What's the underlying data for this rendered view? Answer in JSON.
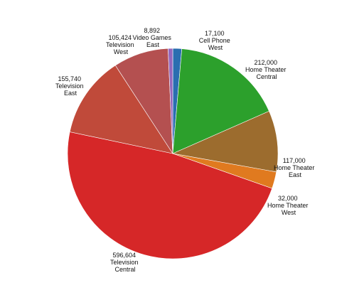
{
  "chart_data": {
    "type": "pie",
    "start": "12 o'clock",
    "direction": "clockwise",
    "slices": [
      {
        "region": "West",
        "product": "Cell Phone",
        "value": 17100,
        "color": "#2a6eb0"
      },
      {
        "region": "Central",
        "product": "Home Theater",
        "value": 212000,
        "color": "#2ca02c"
      },
      {
        "region": "East",
        "product": "Home Theater",
        "value": 117000,
        "color": "#9c6c2e"
      },
      {
        "region": "West",
        "product": "Home Theater",
        "value": 32000,
        "color": "#e07a1f"
      },
      {
        "region": "Central",
        "product": "Television",
        "value": 596604,
        "color": "#d62728"
      },
      {
        "region": "East",
        "product": "Television",
        "value": 155740,
        "color": "#c04a3a"
      },
      {
        "region": "West",
        "product": "Television",
        "value": 105424,
        "color": "#b45050"
      },
      {
        "region": "East",
        "product": "Video Games",
        "value": 8892,
        "color": "#9467bd"
      }
    ],
    "data_labels": [
      {
        "value": "17,100",
        "lines": [
          "Cell Phone",
          "West"
        ]
      },
      {
        "value": "212,000",
        "lines": [
          "Home Theater",
          "Central"
        ]
      },
      {
        "value": "117,000",
        "lines": [
          "Home Theater",
          "East"
        ]
      },
      {
        "value": "32,000",
        "lines": [
          "Home Theater",
          "West"
        ]
      },
      {
        "value": "596,604",
        "lines": [
          "Television",
          "Central"
        ]
      },
      {
        "value": "155,740",
        "lines": [
          "Television",
          "East"
        ]
      },
      {
        "value": "105,424",
        "lines": [
          "Television",
          "West"
        ]
      },
      {
        "value": "8,892",
        "lines": [
          "Video Games",
          "East"
        ]
      }
    ]
  }
}
